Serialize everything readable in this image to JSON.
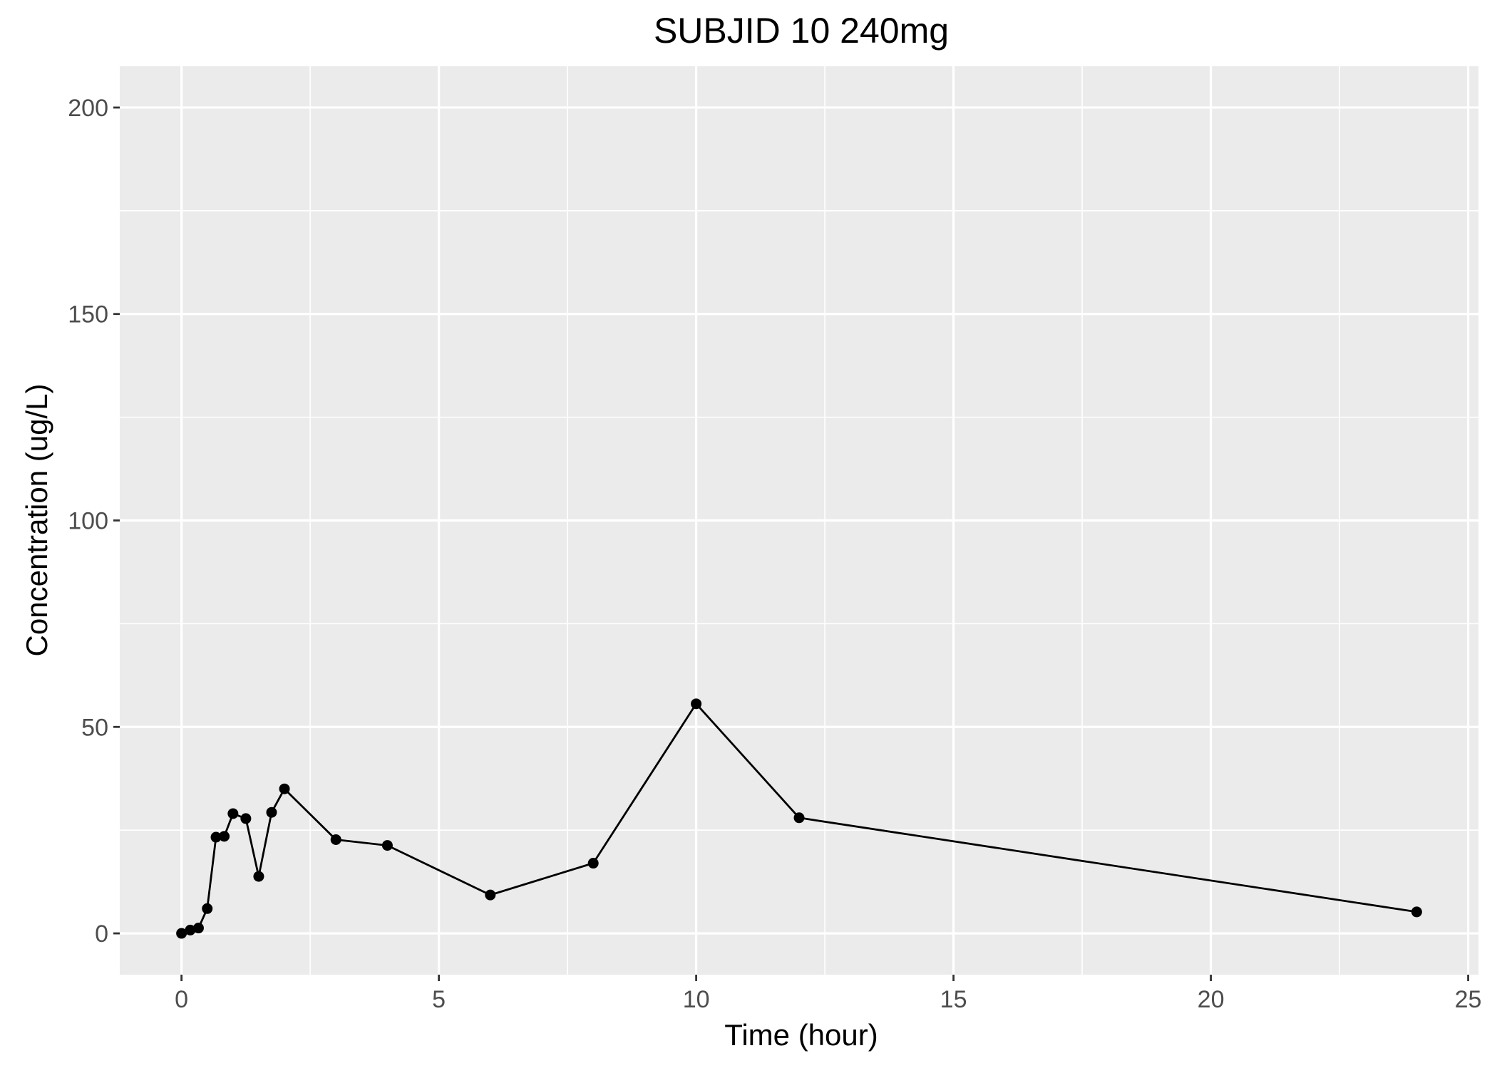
{
  "chart_data": {
    "type": "line",
    "title": "SUBJID 10 240mg",
    "xlabel": "Time (hour)",
    "ylabel": "Concentration (ug/L)",
    "xlim": [
      -1.2,
      25.2
    ],
    "ylim": [
      -10,
      210
    ],
    "x_ticks": [
      0,
      5,
      10,
      15,
      20,
      25
    ],
    "y_ticks": [
      0,
      50,
      100,
      150,
      200
    ],
    "grid": true,
    "background": "#ebebeb",
    "line_color": "#000000",
    "x": [
      0,
      0.17,
      0.33,
      0.5,
      0.67,
      0.83,
      1,
      1.25,
      1.5,
      1.75,
      2,
      3,
      4,
      6,
      8,
      10,
      12,
      24
    ],
    "y": [
      0,
      0.8,
      1.3,
      6,
      23.3,
      23.5,
      29,
      27.8,
      13.8,
      29.3,
      35,
      22.7,
      21.3,
      9.3,
      17,
      55.6,
      28,
      5.2
    ]
  }
}
